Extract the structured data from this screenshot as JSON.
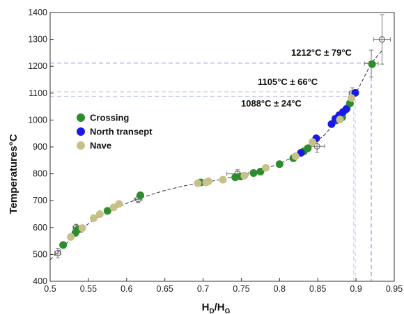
{
  "chart_data": {
    "type": "scatter",
    "xlabel": "H",
    "xlabel_sub1": "D",
    "xlabel_mid": "/H",
    "xlabel_sub2": "G",
    "ylabel": "Temperatures°C",
    "xlim": [
      0.5,
      0.95
    ],
    "ylim": [
      400,
      1400
    ],
    "xticks": [
      0.5,
      0.55,
      0.6,
      0.65,
      0.7,
      0.75,
      0.8,
      0.85,
      0.9,
      0.95
    ],
    "xtick_labels": [
      "0.5",
      "0.55",
      "0.6",
      "0.65",
      "0.7",
      "0.75",
      "0.8",
      "0.85",
      "0.9",
      "0.95"
    ],
    "yticks": [
      400,
      500,
      600,
      700,
      800,
      900,
      1000,
      1100,
      1200,
      1300,
      1400
    ],
    "ytick_labels": [
      "400",
      "500",
      "600",
      "700",
      "800",
      "900",
      "1000",
      "1100",
      "1200",
      "1300",
      "1400"
    ],
    "grid": false,
    "legend_placement": "upper-left",
    "legend": [
      {
        "label": "Crossing",
        "color": "#2e8b2e"
      },
      {
        "label": "North transept",
        "color": "#1a1ae6"
      },
      {
        "label": "Nave",
        "color": "#c8c08a"
      }
    ],
    "series": [
      {
        "name": "Crossing",
        "color": "#2e8b2e",
        "x": [
          0.517,
          0.533,
          0.536,
          0.54,
          0.575,
          0.618,
          0.697,
          0.742,
          0.749,
          0.766,
          0.775,
          0.8,
          0.818,
          0.832,
          0.837,
          0.874,
          0.882,
          0.888,
          0.892,
          0.921
        ],
        "y": [
          535,
          580,
          592,
          595,
          662,
          720,
          768,
          787,
          790,
          803,
          808,
          836,
          858,
          884,
          895,
          998,
          1010,
          1043,
          1062,
          1208
        ]
      },
      {
        "name": "North transept",
        "color": "#1a1ae6",
        "x": [
          0.828,
          0.848,
          0.868,
          0.873,
          0.878,
          0.883,
          0.887,
          0.899
        ],
        "y": [
          878,
          932,
          985,
          1005,
          1018,
          1030,
          1040,
          1101
        ]
      },
      {
        "name": "Nave",
        "color": "#c8c08a",
        "x": [
          0.527,
          0.542,
          0.557,
          0.565,
          0.583,
          0.59,
          0.693,
          0.704,
          0.707,
          0.726,
          0.754,
          0.782,
          0.821,
          0.843,
          0.879,
          0.894
        ],
        "y": [
          565,
          598,
          635,
          650,
          675,
          688,
          765,
          768,
          772,
          778,
          793,
          822,
          865,
          918,
          1002,
          1082
        ]
      }
    ],
    "reference_points": {
      "x": [
        0.51,
        0.534,
        0.615,
        0.745,
        0.849,
        0.895,
        0.92,
        0.934
      ],
      "y": [
        505,
        600,
        705,
        800,
        902,
        1100,
        1210,
        1300
      ],
      "xerr": [
        0.004,
        0.004,
        0.005,
        0.014,
        0.01,
        0.004,
        0.009,
        0.011
      ],
      "yerr": [
        18,
        12,
        12,
        15,
        22,
        20,
        50,
        92
      ]
    },
    "fit_curve": {
      "x": [
        0.5,
        0.51,
        0.52,
        0.53,
        0.54,
        0.55,
        0.56,
        0.58,
        0.6,
        0.62,
        0.65,
        0.68,
        0.7,
        0.72,
        0.75,
        0.78,
        0.8,
        0.82,
        0.84,
        0.86,
        0.88,
        0.9,
        0.92,
        0.935
      ],
      "y": [
        480,
        507,
        537,
        566,
        592,
        614,
        634,
        664,
        690,
        712,
        738,
        758,
        767,
        777,
        795,
        817,
        838,
        865,
        900,
        948,
        1018,
        1100,
        1212,
        1262
      ]
    },
    "annotations": [
      {
        "text": "1212°C ± 79°C",
        "x": 0.92,
        "y": 1212,
        "color": "#7a8fd0"
      },
      {
        "text": "1105°C ± 66°C",
        "x": 0.899,
        "y": 1105,
        "color": "#c0c8e8"
      },
      {
        "text": "1088°C ± 24°C",
        "x": 0.897,
        "y": 1088,
        "color": "#c0c8e8"
      }
    ]
  }
}
